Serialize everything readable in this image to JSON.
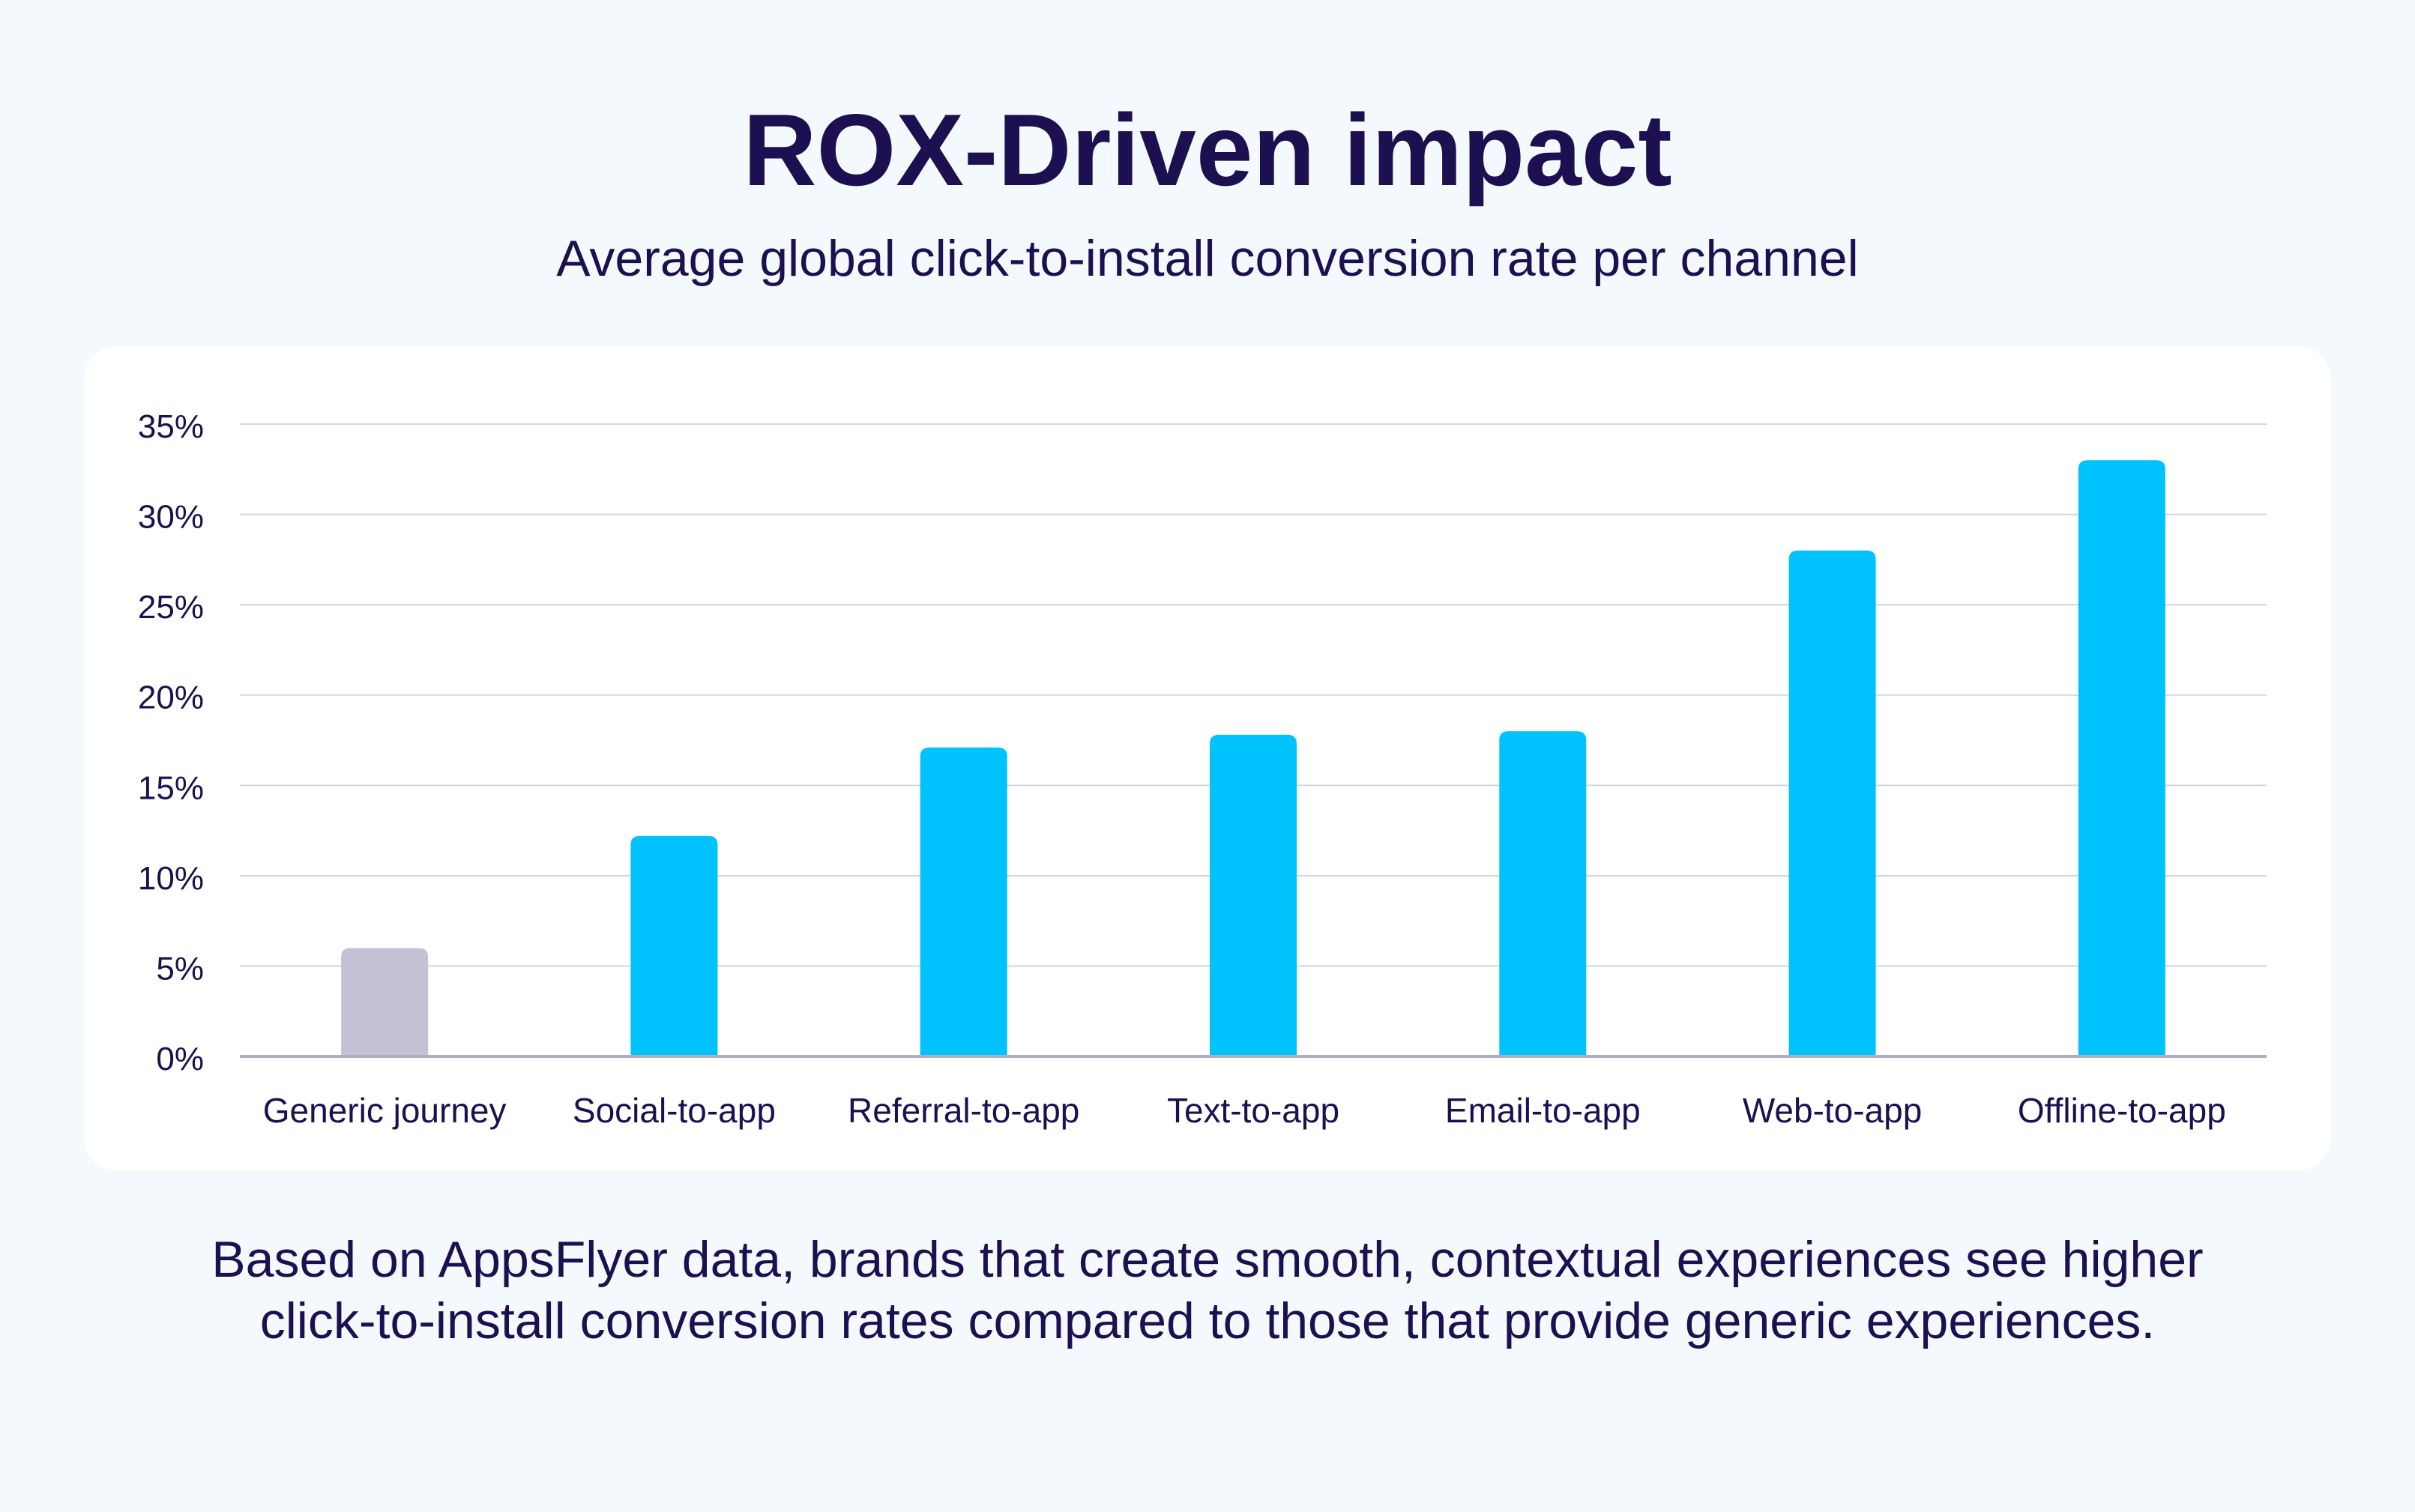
{
  "header": {
    "title": "ROX-Driven impact",
    "subtitle": "Average global click-to-install conversion rate per channel"
  },
  "footnote": {
    "line1": "Based on AppsFlyer data, brands that create smooth, contextual experiences see higher",
    "line2": "click-to-install conversion rates compared to those that provide generic experiences."
  },
  "colors": {
    "baseline_bar": "#c4c1d4",
    "channel_bar": "#00c2fc",
    "grid": "#d5d5de",
    "axis": "#b0aec3",
    "text": "#1d1050"
  },
  "chart_data": {
    "type": "bar",
    "title": "ROX-Driven impact",
    "subtitle": "Average global click-to-install conversion rate per channel",
    "xlabel": "",
    "ylabel": "",
    "categories": [
      "Generic journey",
      "Social-to-app",
      "Referral-to-app",
      "Text-to-app",
      "Email-to-app",
      "Web-to-app",
      "Offline-to-app"
    ],
    "values": [
      6,
      12.2,
      17.1,
      17.8,
      18,
      28,
      33
    ],
    "ylim": [
      0,
      35
    ],
    "yticks": [
      0,
      5,
      10,
      15,
      20,
      25,
      30,
      35
    ],
    "ytick_labels": [
      "0%",
      "5%",
      "10%",
      "15%",
      "20%",
      "25%",
      "30%",
      "35%"
    ],
    "grid": true,
    "legend": "none",
    "highlight": {
      "index": 0,
      "note": "baseline bar shown in grey"
    }
  }
}
